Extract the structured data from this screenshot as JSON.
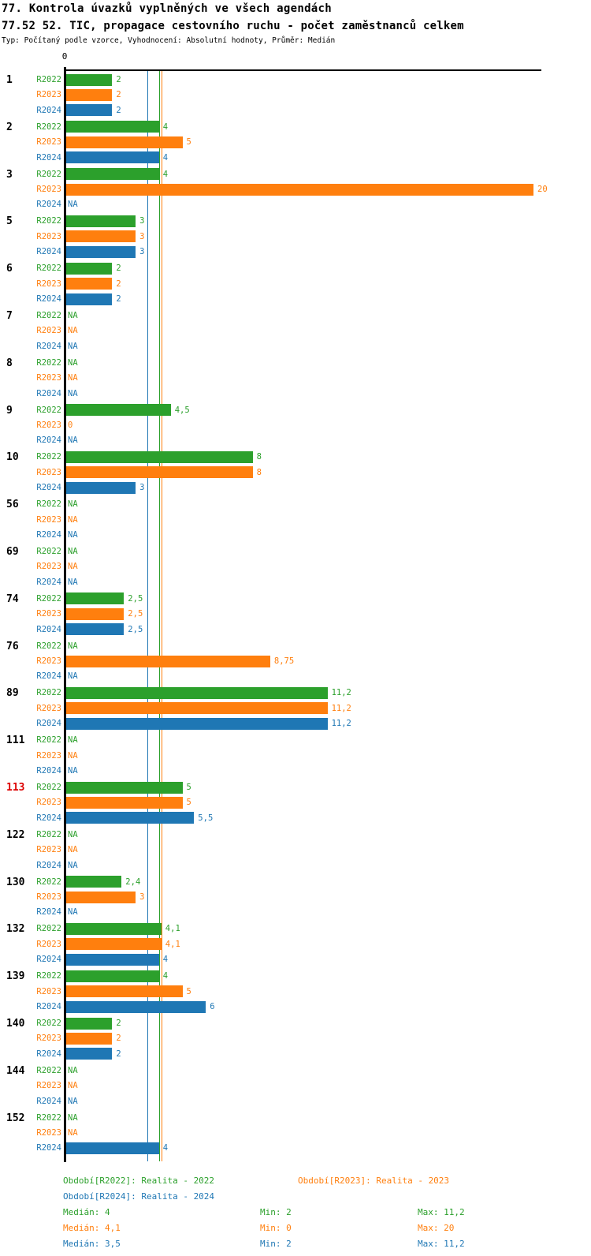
{
  "title": "77. Kontrola úvazků vyplněných ve všech agendách",
  "subtitle": "77.52 52. TIC, propagace cestovního ruchu - počet zaměstnanců celkem",
  "meta": "Typ: Počítaný podle vzorce, Vyhodnocení: Absolutní hodnoty, Průměr: Medián",
  "colors": {
    "R2022": "#2ca02c",
    "R2023": "#ff7f0e",
    "R2024": "#1f77b4",
    "highlight_row": "#dd0000",
    "axis": "#000000"
  },
  "axis": {
    "origin_label": "0"
  },
  "chart_data": {
    "type": "bar",
    "orientation": "horizontal",
    "xlim": [
      0,
      20.4
    ],
    "series_names": [
      "R2022",
      "R2023",
      "R2024"
    ],
    "na_label": "NA",
    "median_lines": [
      {
        "series": "R2022",
        "value": 4
      },
      {
        "series": "R2023",
        "value": 4.1
      },
      {
        "series": "R2024",
        "value": 3.5
      }
    ],
    "groups": [
      {
        "id": "1",
        "highlight": false,
        "values": [
          2,
          2,
          2
        ],
        "labels": [
          "2",
          "2",
          "2"
        ]
      },
      {
        "id": "2",
        "highlight": false,
        "values": [
          4,
          5,
          4
        ],
        "labels": [
          "4",
          "5",
          "4"
        ]
      },
      {
        "id": "3",
        "highlight": false,
        "values": [
          4,
          20,
          null
        ],
        "labels": [
          "4",
          "20",
          "NA"
        ]
      },
      {
        "id": "5",
        "highlight": false,
        "values": [
          3,
          3,
          3
        ],
        "labels": [
          "3",
          "3",
          "3"
        ]
      },
      {
        "id": "6",
        "highlight": false,
        "values": [
          2,
          2,
          2
        ],
        "labels": [
          "2",
          "2",
          "2"
        ]
      },
      {
        "id": "7",
        "highlight": false,
        "values": [
          null,
          null,
          null
        ],
        "labels": [
          "NA",
          "NA",
          "NA"
        ]
      },
      {
        "id": "8",
        "highlight": false,
        "values": [
          null,
          null,
          null
        ],
        "labels": [
          "NA",
          "NA",
          "NA"
        ]
      },
      {
        "id": "9",
        "highlight": false,
        "values": [
          4.5,
          0,
          null
        ],
        "labels": [
          "4,5",
          "0",
          "NA"
        ]
      },
      {
        "id": "10",
        "highlight": false,
        "values": [
          8,
          8,
          3
        ],
        "labels": [
          "8",
          "8",
          "3"
        ]
      },
      {
        "id": "56",
        "highlight": false,
        "values": [
          null,
          null,
          null
        ],
        "labels": [
          "NA",
          "NA",
          "NA"
        ]
      },
      {
        "id": "69",
        "highlight": false,
        "values": [
          null,
          null,
          null
        ],
        "labels": [
          "NA",
          "NA",
          "NA"
        ]
      },
      {
        "id": "74",
        "highlight": false,
        "values": [
          2.5,
          2.5,
          2.5
        ],
        "labels": [
          "2,5",
          "2,5",
          "2,5"
        ]
      },
      {
        "id": "76",
        "highlight": false,
        "values": [
          null,
          8.75,
          null
        ],
        "labels": [
          "NA",
          "8,75",
          "NA"
        ]
      },
      {
        "id": "89",
        "highlight": false,
        "values": [
          11.2,
          11.2,
          11.2
        ],
        "labels": [
          "11,2",
          "11,2",
          "11,2"
        ]
      },
      {
        "id": "111",
        "highlight": false,
        "values": [
          null,
          null,
          null
        ],
        "labels": [
          "NA",
          "NA",
          "NA"
        ]
      },
      {
        "id": "113",
        "highlight": true,
        "values": [
          5,
          5,
          5.5
        ],
        "labels": [
          "5",
          "5",
          "5,5"
        ]
      },
      {
        "id": "122",
        "highlight": false,
        "values": [
          null,
          null,
          null
        ],
        "labels": [
          "NA",
          "NA",
          "NA"
        ]
      },
      {
        "id": "130",
        "highlight": false,
        "values": [
          2.4,
          3,
          null
        ],
        "labels": [
          "2,4",
          "3",
          "NA"
        ]
      },
      {
        "id": "132",
        "highlight": false,
        "values": [
          4.1,
          4.1,
          4
        ],
        "labels": [
          "4,1",
          "4,1",
          "4"
        ]
      },
      {
        "id": "139",
        "highlight": false,
        "values": [
          4,
          5,
          6
        ],
        "labels": [
          "4",
          "5",
          "6"
        ]
      },
      {
        "id": "140",
        "highlight": false,
        "values": [
          2,
          2,
          2
        ],
        "labels": [
          "2",
          "2",
          "2"
        ]
      },
      {
        "id": "144",
        "highlight": false,
        "values": [
          null,
          null,
          null
        ],
        "labels": [
          "NA",
          "NA",
          "NA"
        ]
      },
      {
        "id": "152",
        "highlight": false,
        "values": [
          null,
          null,
          4
        ],
        "labels": [
          "NA",
          "NA",
          "4"
        ]
      }
    ]
  },
  "legend": {
    "periods": [
      {
        "series": "R2022",
        "text": "Období[R2022]: Realita - 2022"
      },
      {
        "series": "R2023",
        "text": "Období[R2023]: Realita - 2023"
      },
      {
        "series": "R2024",
        "text": "Období[R2024]: Realita - 2024"
      }
    ],
    "stats": [
      {
        "series": "R2022",
        "median": "Medián: 4",
        "min": "Min: 2",
        "max": "Max: 11,2"
      },
      {
        "series": "R2023",
        "median": "Medián: 4,1",
        "min": "Min: 0",
        "max": "Max: 20"
      },
      {
        "series": "R2024",
        "median": "Medián: 3,5",
        "min": "Min: 2",
        "max": "Max: 11,2"
      }
    ]
  }
}
